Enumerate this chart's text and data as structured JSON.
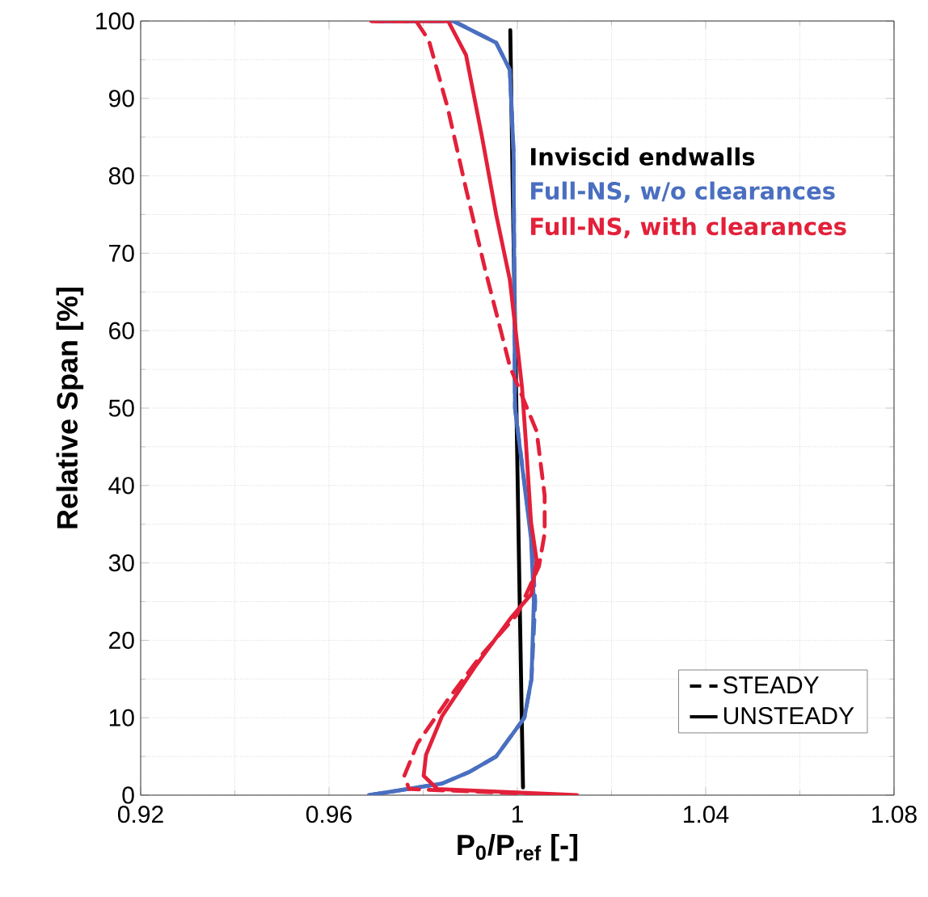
{
  "chart_data": {
    "type": "line",
    "xlabel": "**P$_{0}$/P$_{ref}$ [-]**",
    "ylabel": "Relative Span [%]",
    "xlim": [
      0.92,
      1.08
    ],
    "xticks": [
      0.92,
      0.96,
      1,
      1.04,
      1.08
    ],
    "ylim": [
      0,
      100
    ],
    "yticks": [
      0,
      10,
      20,
      30,
      40,
      50,
      60,
      70,
      80,
      90,
      100
    ],
    "grid": true,
    "legend": "top right",
    "annotations": [
      "STEADY",
      "UNSTEADY"
    ],
    "series": [
      {
        "name": "Inviscid endwalls",
        "color": "#000000",
        "line_style": "solid",
        "x": [
          1.0012,
          1.0005,
          0.9998,
          0.9991,
          0.9985
        ],
        "values": [
          1,
          25,
          50,
          75,
          98.8
        ]
      },
      {
        "name": "Full-NS, w/o clearances",
        "color": "#4a6fc0",
        "line_style": "solid",
        "x": [
          0.9685,
          0.984,
          0.9898,
          0.9955,
          1.0015,
          1.003,
          1.0035,
          1.0029,
          0.9995,
          0.9992,
          0.9984,
          0.9955,
          0.9864,
          0.9699
        ],
        "values": [
          0,
          1.5,
          3,
          5,
          10,
          15,
          25,
          33.2,
          50,
          83,
          93.7,
          97.2,
          100,
          100
        ]
      },
      {
        "color": "#4a6fc0",
        "line_style": "dashed",
        "x": [
          0.9685,
          0.984,
          0.9898,
          0.9955,
          1.0015,
          1.003,
          1.0038,
          1.003,
          0.9995,
          0.9992,
          0.9984,
          0.9955,
          0.9864,
          0.9699
        ],
        "values": [
          0,
          1.5,
          3,
          5,
          10,
          15,
          25,
          33.2,
          50,
          83,
          93.7,
          97.2,
          100,
          100
        ]
      },
      {
        "name": "Full-NS, with clearances",
        "color": "#e3203a",
        "line_style": "solid",
        "x": [
          1.0127,
          0.983,
          0.9801,
          0.9806,
          0.984,
          0.9909,
          0.9985,
          1.003,
          1.0041,
          1.0029,
          1.0018,
          1.001,
          1.0001,
          0.9984,
          0.9955,
          0.9925,
          0.9891,
          0.9853,
          0.969
        ],
        "values": [
          0,
          0.8,
          2.5,
          5.2,
          10.2,
          16.5,
          22.8,
          26,
          30.3,
          35.3,
          45.7,
          52.6,
          57.5,
          66.6,
          75,
          85,
          95.6,
          100,
          100
        ]
      },
      {
        "color": "#e3203a",
        "line_style": "dashed",
        "x": [
          1.01,
          0.977,
          0.976,
          0.9788,
          0.9852,
          0.992,
          1.0,
          1.0046,
          1.0058,
          1.0058,
          1.0041,
          0.9984,
          0.9967,
          0.9932,
          0.9891,
          0.9852,
          0.9812,
          0.9785,
          0.969
        ],
        "values": [
          0,
          0.8,
          2.5,
          6.7,
          12.3,
          17.8,
          23.4,
          29.6,
          33.8,
          38.7,
          47,
          55.4,
          59.5,
          67.8,
          78.3,
          88.8,
          97.5,
          100,
          100
        ]
      }
    ]
  }
}
